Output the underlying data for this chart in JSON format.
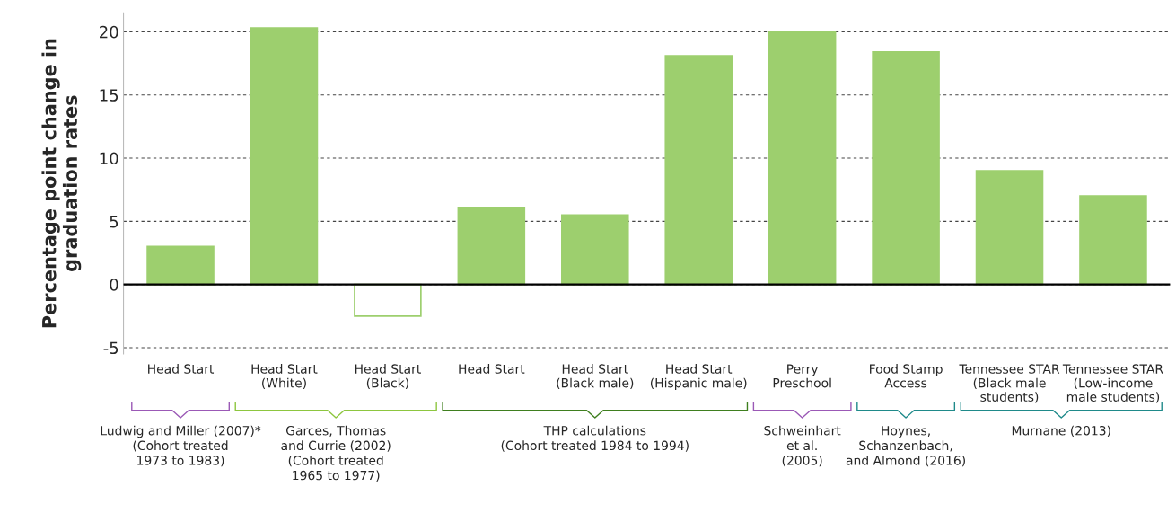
{
  "chart_data": {
    "type": "bar",
    "ylabel": "Percentage point change in\ngraduation rates",
    "categories": [
      "Head Start",
      "Head Start\n(White)",
      "Head Start\n(Black)",
      "Head Start",
      "Head Start\n(Black male)",
      "Head Start\n(Hispanic male)",
      "Perry\nPreschool",
      "Food Stamp\nAccess",
      "Tennessee STAR\n(Black male\nstudents)",
      "Tennessee STAR\n(Low-income\nmale students)"
    ],
    "values": [
      3,
      20.3,
      -2.5,
      6.1,
      5.5,
      18.1,
      20,
      18.4,
      9,
      7
    ],
    "colors": [
      "#9dcf6e",
      "#9dcf6e",
      "#ffffff",
      "#9dcf6e",
      "#9dcf6e",
      "#9dcf6e",
      "#9dcf6e",
      "#9dcf6e",
      "#9dcf6e",
      "#9dcf6e"
    ],
    "ylim": [
      -5.5,
      21.5
    ],
    "yticks": [
      {
        "value": -5,
        "label": "-5"
      },
      0,
      5,
      10,
      15,
      20
    ],
    "grid": "y",
    "annotations": [
      "Ludwig and Miller (2007)*\n(Cohort treated\n1973 to 1983)",
      "Garces, Thomas\nand Currie (2002)\n(Cohort treated\n1965 to 1977)",
      "THP calculations\n(Cohort treated 1984 to 1994)",
      "Schweinhart\net al.\n(2005)",
      "Hoynes,\nSchanzenbach,\nand Almond (2016)",
      "Murnane (2013)"
    ]
  }
}
